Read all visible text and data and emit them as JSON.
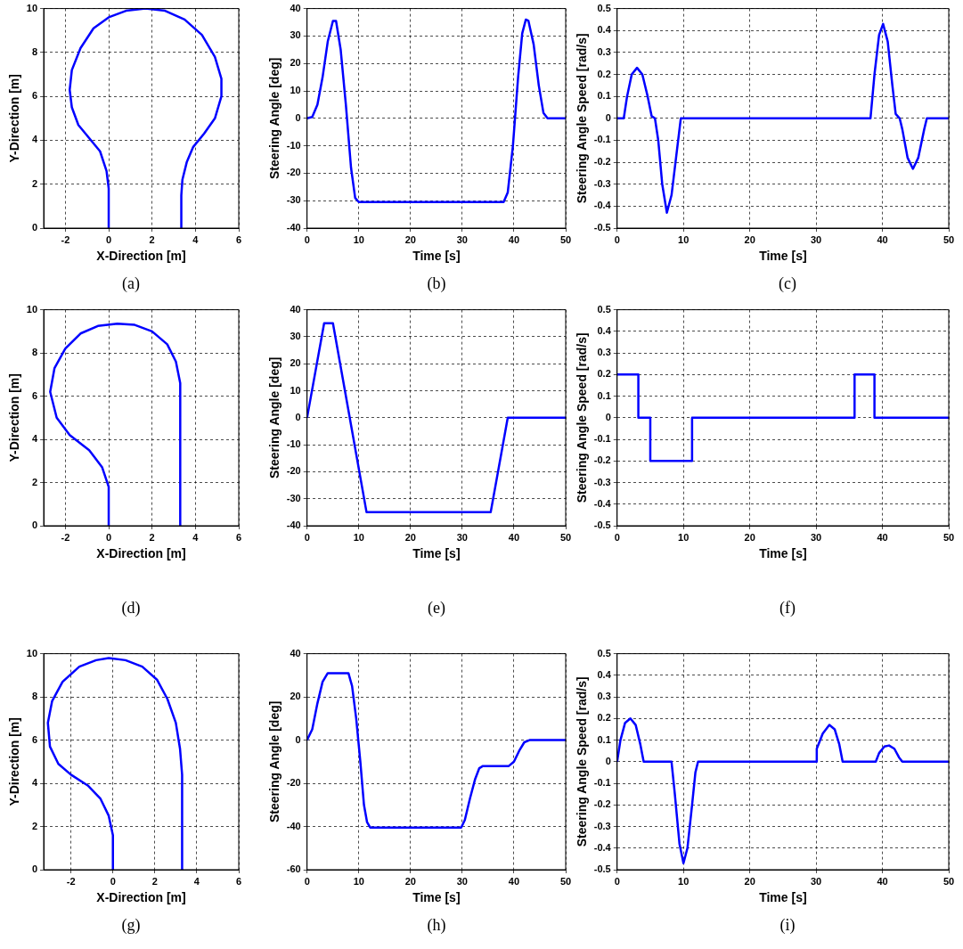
{
  "chart_data": [
    {
      "type": "line",
      "xlabel": "X-Direction [m]",
      "ylabel": "Y-Direction [m]",
      "xlim": [
        -3,
        6
      ],
      "ylim": [
        0,
        10
      ],
      "xticks": [
        -2,
        0,
        2,
        4,
        6
      ],
      "yticks": [
        0,
        2,
        4,
        6,
        8,
        10
      ],
      "grid": true,
      "marker": "none",
      "line_style": "solid",
      "color": "#0000ff",
      "annotations": [
        "(a)"
      ],
      "x": [
        0,
        0,
        -0.1,
        -0.4,
        -0.9,
        -1.4,
        -1.7,
        -1.8,
        -1.7,
        -1.3,
        -0.7,
        0,
        0.8,
        1.7,
        2.6,
        3.5,
        4.3,
        4.9,
        5.2,
        5.2,
        4.9,
        4.4,
        3.9,
        3.6,
        3.4,
        3.35,
        3.35
      ],
      "values": [
        0,
        1.8,
        2.6,
        3.5,
        4.1,
        4.7,
        5.5,
        6.3,
        7.2,
        8.2,
        9.1,
        9.6,
        9.9,
        10,
        9.9,
        9.5,
        8.8,
        7.8,
        6.8,
        6,
        5,
        4.3,
        3.7,
        3,
        2.2,
        1.5,
        0
      ]
    },
    {
      "type": "line",
      "xlabel": "Time [s]",
      "ylabel": "Steering Angle [deg]",
      "xlim": [
        0,
        50
      ],
      "ylim": [
        -40,
        40
      ],
      "xticks": [
        0,
        10,
        20,
        30,
        40,
        50
      ],
      "yticks": [
        -40,
        -30,
        -20,
        -10,
        0,
        10,
        20,
        30,
        40
      ],
      "grid": true,
      "marker": "none",
      "line_style": "solid",
      "color": "#0000ff",
      "annotations": [
        "(b)"
      ],
      "x": [
        0,
        1,
        2,
        3,
        4,
        5,
        5.6,
        6.5,
        7.5,
        8.5,
        9.3,
        10,
        38,
        38.8,
        39.8,
        40.8,
        41.6,
        42.3,
        42.8,
        43.8,
        44.8,
        45.7,
        46.5,
        50
      ],
      "values": [
        0,
        0.5,
        5,
        15,
        28,
        35.5,
        35.5,
        25,
        5,
        -18,
        -29,
        -30.5,
        -30.5,
        -27,
        -10,
        15,
        31,
        36,
        35.5,
        27,
        12,
        2,
        0,
        0
      ]
    },
    {
      "type": "line",
      "xlabel": "Time [s]",
      "ylabel": "Steering Angle Speed [rad/s]",
      "xlim": [
        0,
        50
      ],
      "ylim": [
        -0.5,
        0.5
      ],
      "xticks": [
        0,
        10,
        20,
        30,
        40,
        50
      ],
      "yticks": [
        -0.5,
        -0.4,
        -0.3,
        -0.2,
        -0.1,
        0,
        0.1,
        0.2,
        0.3,
        0.4,
        0.5
      ],
      "grid": true,
      "marker": "none",
      "line_style": "solid",
      "color": "#0000ff",
      "annotations": [
        "(c)"
      ],
      "x": [
        0,
        1,
        1.5,
        2.2,
        3,
        3.8,
        4.6,
        5.2,
        5.7,
        6.2,
        6.8,
        7.5,
        8.2,
        8.8,
        9.4,
        9.6,
        38.2,
        38.8,
        39.5,
        40.1,
        40.8,
        41.5,
        42,
        42.6,
        43,
        43.8,
        44.6,
        45.4,
        46.3,
        46.7,
        50
      ],
      "values": [
        0,
        0,
        0.1,
        0.2,
        0.23,
        0.2,
        0.1,
        0.01,
        0,
        -0.1,
        -0.3,
        -0.43,
        -0.35,
        -0.2,
        -0.05,
        0,
        0,
        0.2,
        0.38,
        0.43,
        0.35,
        0.15,
        0.02,
        0,
        -0.05,
        -0.18,
        -0.23,
        -0.18,
        -0.05,
        0,
        0
      ]
    },
    {
      "type": "line",
      "xlabel": "X-Direction [m]",
      "ylabel": "Y-Direction [m]",
      "xlim": [
        -3,
        6
      ],
      "ylim": [
        0,
        10
      ],
      "xticks": [
        -2,
        0,
        2,
        4,
        6
      ],
      "yticks": [
        0,
        2,
        4,
        6,
        8,
        10
      ],
      "grid": true,
      "marker": "none",
      "line_style": "solid",
      "color": "#0000ff",
      "annotations": [
        "(d)"
      ],
      "x": [
        0,
        0,
        -0.3,
        -0.9,
        -1.8,
        -2.4,
        -2.7,
        -2.5,
        -2,
        -1.3,
        -0.5,
        0.4,
        1.2,
        2,
        2.7,
        3.1,
        3.3,
        3.3
      ],
      "values": [
        0,
        1.8,
        2.7,
        3.5,
        4.2,
        5,
        6.2,
        7.3,
        8.2,
        8.9,
        9.25,
        9.35,
        9.3,
        9,
        8.4,
        7.6,
        6.6,
        0
      ]
    },
    {
      "type": "line",
      "xlabel": "Time [s]",
      "ylabel": "Steering Angle [deg]",
      "xlim": [
        0,
        50
      ],
      "ylim": [
        -40,
        40
      ],
      "xticks": [
        0,
        10,
        20,
        30,
        40,
        50
      ],
      "yticks": [
        -40,
        -30,
        -20,
        -10,
        0,
        10,
        20,
        30,
        40
      ],
      "grid": true,
      "marker": "none",
      "line_style": "solid",
      "color": "#0000ff",
      "annotations": [
        "(e)"
      ],
      "x": [
        0,
        3.3,
        5,
        11.5,
        35.5,
        38.8,
        50
      ],
      "values": [
        0,
        35,
        35,
        -35,
        -35,
        0,
        0
      ]
    },
    {
      "type": "line",
      "xlabel": "Time [s]",
      "ylabel": "Steering Angle Speed [rad/s]",
      "xlim": [
        0,
        50
      ],
      "ylim": [
        -0.5,
        0.5
      ],
      "xticks": [
        0,
        10,
        20,
        30,
        40,
        50
      ],
      "yticks": [
        -0.5,
        -0.4,
        -0.3,
        -0.2,
        -0.1,
        0,
        0.1,
        0.2,
        0.3,
        0.4,
        0.5
      ],
      "grid": true,
      "marker": "none",
      "line_style": "solid",
      "color": "#0000ff",
      "annotations": [
        "(f)"
      ],
      "x": [
        0,
        3.2,
        3.2,
        5,
        5,
        11.3,
        11.3,
        35.8,
        35.8,
        38.8,
        38.8,
        50
      ],
      "values": [
        0.2,
        0.2,
        0,
        0,
        -0.2,
        -0.2,
        0,
        0,
        0.2,
        0.2,
        0,
        0
      ]
    },
    {
      "type": "line",
      "xlabel": "X-Direction [m]",
      "ylabel": "Y-Direction [m]",
      "xlim": [
        -3.3,
        6
      ],
      "ylim": [
        0,
        10
      ],
      "xticks": [
        -2,
        0,
        2,
        4,
        6
      ],
      "yticks": [
        0,
        2,
        4,
        6,
        8,
        10
      ],
      "grid": true,
      "marker": "none",
      "line_style": "solid",
      "color": "#0000ff",
      "annotations": [
        "(g)"
      ],
      "x": [
        0,
        0,
        -0.2,
        -0.6,
        -1.2,
        -2,
        -2.6,
        -3,
        -3.1,
        -2.9,
        -2.4,
        -1.6,
        -0.8,
        -0.2,
        0.6,
        1.4,
        2.1,
        2.6,
        3,
        3.2,
        3.3,
        3.3
      ],
      "values": [
        0,
        1.6,
        2.5,
        3.3,
        3.9,
        4.4,
        4.9,
        5.7,
        6.8,
        7.8,
        8.7,
        9.4,
        9.7,
        9.8,
        9.7,
        9.4,
        8.8,
        7.9,
        6.8,
        5.6,
        4.4,
        0
      ]
    },
    {
      "type": "line",
      "xlabel": "Time [s]",
      "ylabel": "Steering Angle [deg]",
      "xlim": [
        0,
        50
      ],
      "ylim": [
        -60,
        40
      ],
      "xticks": [
        0,
        10,
        20,
        30,
        40,
        50
      ],
      "yticks": [
        -60,
        -40,
        -20,
        0,
        20,
        40
      ],
      "grid": true,
      "marker": "none",
      "line_style": "solid",
      "color": "#0000ff",
      "annotations": [
        "(h)"
      ],
      "x": [
        0,
        1,
        2,
        3,
        4,
        8,
        8.7,
        9.5,
        10.3,
        11,
        11.6,
        12.2,
        29.8,
        30.5,
        31.5,
        32.5,
        33.3,
        34,
        39,
        40,
        41,
        42,
        43,
        50
      ],
      "values": [
        0,
        5,
        17,
        27,
        31,
        31,
        25,
        10,
        -10,
        -30,
        -38,
        -40.5,
        -40.5,
        -37,
        -27,
        -18,
        -13,
        -12,
        -12,
        -10,
        -5,
        -1,
        0,
        0
      ]
    },
    {
      "type": "line",
      "xlabel": "Time [s]",
      "ylabel": "Steering Angle Speed [rad/s]",
      "xlim": [
        0,
        50
      ],
      "ylim": [
        -0.5,
        0.5
      ],
      "xticks": [
        0,
        10,
        20,
        30,
        40,
        50
      ],
      "yticks": [
        -0.5,
        -0.4,
        -0.3,
        -0.2,
        -0.1,
        0,
        0.1,
        0.2,
        0.3,
        0.4,
        0.5
      ],
      "grid": true,
      "marker": "none",
      "line_style": "solid",
      "color": "#0000ff",
      "annotations": [
        "(i)"
      ],
      "x": [
        0,
        0.5,
        1.2,
        2,
        2.8,
        3.5,
        4,
        8.2,
        8.7,
        9.4,
        10,
        10.6,
        11.3,
        11.8,
        12.2,
        30,
        30.1,
        31,
        32,
        32.8,
        33.5,
        34,
        39,
        39.5,
        40.3,
        41,
        41.8,
        42.5,
        43,
        50
      ],
      "values": [
        0,
        0.1,
        0.18,
        0.2,
        0.17,
        0.08,
        0,
        0,
        -0.15,
        -0.38,
        -0.47,
        -0.4,
        -0.2,
        -0.05,
        0,
        0,
        0.06,
        0.13,
        0.17,
        0.15,
        0.08,
        0,
        0,
        0.04,
        0.07,
        0.075,
        0.06,
        0.02,
        0,
        0
      ]
    }
  ]
}
